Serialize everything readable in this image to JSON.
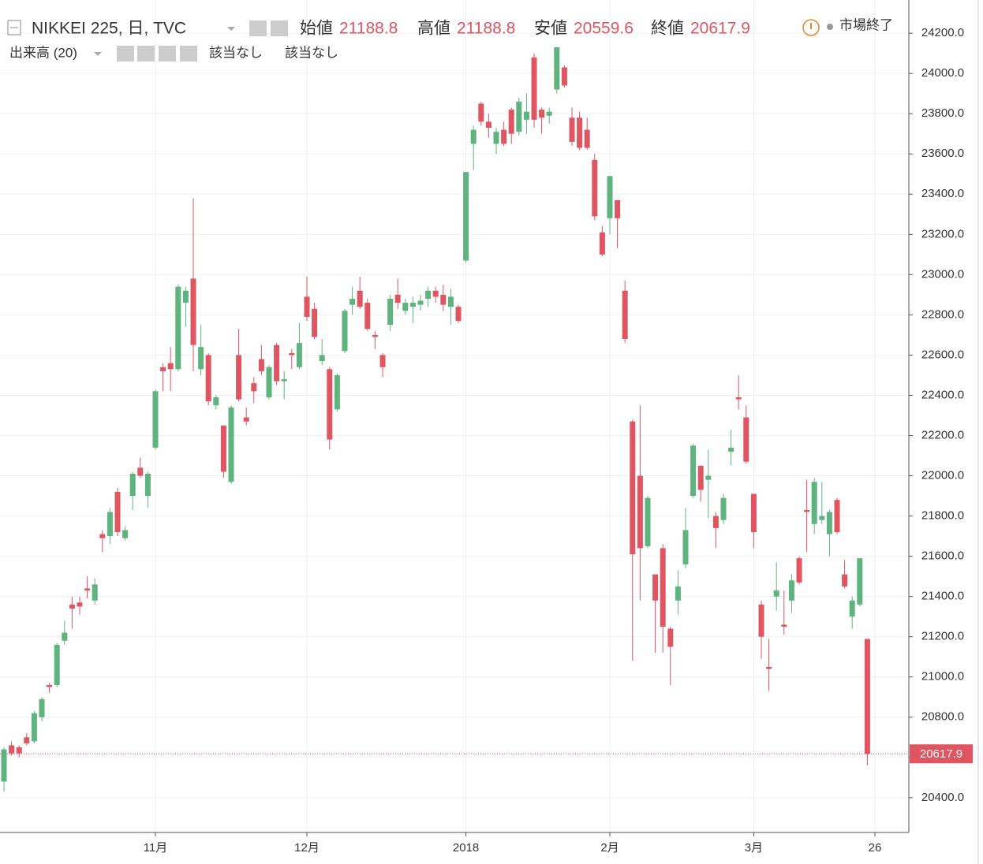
{
  "chart_data": {
    "type": "candlestick",
    "title": "NIKKEI 225, 日, TVC",
    "ohlc_labels": [
      "始値",
      "高値",
      "安値",
      "終値"
    ],
    "status": "市場終了",
    "volume_label": "出来高 (20)",
    "volume_values": [
      "該当なし",
      "該当なし"
    ],
    "up_color": "#5eb37e",
    "down_color": "#df5562",
    "grid": true,
    "ylim": [
      20227,
      24365
    ],
    "yticks": [
      {
        "value": 20400,
        "label": "20400.0"
      },
      {
        "value": 20600,
        "label": "20600.0"
      },
      {
        "value": 20800,
        "label": "20800.0"
      },
      {
        "value": 21000,
        "label": "21000.0"
      },
      {
        "value": 21200,
        "label": "21200.0"
      },
      {
        "value": 21400,
        "label": "21400.0"
      },
      {
        "value": 21600,
        "label": "21600.0"
      },
      {
        "value": 21800,
        "label": "21800.0"
      },
      {
        "value": 22000,
        "label": "22000.0"
      },
      {
        "value": 22200,
        "label": "22200.0"
      },
      {
        "value": 22400,
        "label": "22400.0"
      },
      {
        "value": 22600,
        "label": "22600.0"
      },
      {
        "value": 22800,
        "label": "22800.0"
      },
      {
        "value": 23000,
        "label": "23000.0"
      },
      {
        "value": 23200,
        "label": "23200.0"
      },
      {
        "value": 23400,
        "label": "23400.0"
      },
      {
        "value": 23600,
        "label": "23600.0"
      },
      {
        "value": 23800,
        "label": "23800.0"
      },
      {
        "value": 24000,
        "label": "24000.0"
      },
      {
        "value": 24200,
        "label": "24200.0"
      }
    ],
    "categories": [
      null,
      null,
      null,
      null,
      null,
      null,
      null,
      null,
      null,
      null,
      null,
      null,
      null,
      null,
      null,
      null,
      null,
      null,
      null,
      null,
      "11月",
      null,
      null,
      null,
      null,
      null,
      null,
      null,
      null,
      null,
      null,
      null,
      null,
      null,
      null,
      null,
      null,
      null,
      null,
      null,
      "12月",
      null,
      null,
      null,
      null,
      null,
      null,
      null,
      null,
      null,
      null,
      null,
      null,
      null,
      null,
      null,
      null,
      null,
      null,
      null,
      null,
      "2018",
      null,
      null,
      null,
      null,
      null,
      null,
      null,
      null,
      null,
      null,
      null,
      null,
      null,
      null,
      null,
      null,
      null,
      null,
      "2月",
      null,
      null,
      null,
      null,
      null,
      null,
      null,
      null,
      null,
      null,
      null,
      null,
      null,
      null,
      null,
      null,
      null,
      null,
      "3月",
      null,
      null,
      null,
      null,
      null,
      null,
      null,
      null,
      null,
      null,
      null,
      null,
      null,
      null,
      null,
      "26"
    ],
    "open": [
      20480,
      20660,
      20650,
      20700,
      20680,
      20800,
      20960,
      20960,
      21180,
      21360,
      21370,
      21440,
      21380,
      21710,
      21700,
      21920,
      21690,
      21900,
      22040,
      21900,
      22140,
      22540,
      22560,
      22530,
      22860,
      22980,
      22530,
      22600,
      22350,
      22250,
      21970,
      22600,
      22290,
      22460,
      22580,
      22390,
      22650,
      22470,
      22610,
      22540,
      22890,
      22830,
      22570,
      22530,
      22330,
      22620,
      22850,
      22920,
      22860,
      22700,
      22600,
      22750,
      22900,
      22820,
      22840,
      22850,
      22880,
      22920,
      22900,
      22840,
      22840,
      23070,
      23650,
      23850,
      23760,
      23650,
      23720,
      23820,
      23710,
      23770,
      24080,
      23820,
      23790,
      23920,
      24030,
      23780,
      23780,
      23720,
      23570,
      23210,
      23280,
      23370,
      22920,
      22270,
      22000,
      21650,
      21510,
      21640,
      21240,
      21380,
      21560,
      21900,
      22050,
      21980,
      21800,
      21780,
      22120,
      22390,
      22290,
      21910,
      21360,
      21050,
      21400,
      21260,
      21380,
      21590,
      21830,
      21760,
      21780,
      21710,
      21880,
      21510,
      21300,
      21360,
      21188.8,
      null
    ],
    "high": [
      20650,
      20680,
      20660,
      20720,
      20830,
      20900,
      20970,
      21170,
      21280,
      21400,
      21400,
      21500,
      21490,
      21730,
      21840,
      21940,
      21750,
      22020,
      22090,
      22020,
      22430,
      22560,
      22640,
      22950,
      22940,
      23380,
      22750,
      22610,
      22400,
      22250,
      22350,
      22730,
      22340,
      22490,
      22650,
      22550,
      22660,
      22520,
      22630,
      22760,
      22990,
      22860,
      22680,
      22540,
      22510,
      22830,
      22940,
      22990,
      22880,
      22720,
      22610,
      22900,
      22980,
      22880,
      22890,
      22900,
      22940,
      22940,
      22950,
      22930,
      22850,
      23510,
      23740,
      23860,
      23800,
      23730,
      23760,
      23830,
      23880,
      23900,
      24100,
      23830,
      23830,
      24130,
      24040,
      23830,
      23810,
      23780,
      23600,
      23240,
      23490,
      23370,
      22970,
      22280,
      22350,
      21900,
      21510,
      21660,
      21250,
      21530,
      21840,
      22160,
      22050,
      22130,
      21820,
      21910,
      22230,
      22500,
      22350,
      21910,
      21380,
      21190,
      21570,
      21430,
      21510,
      21600,
      21980,
      21990,
      21970,
      21830,
      21890,
      21580,
      21400,
      21590,
      21188.8,
      null
    ],
    "low": [
      20430,
      20610,
      20600,
      20660,
      20670,
      20780,
      20920,
      20950,
      21160,
      21240,
      21310,
      21390,
      21360,
      21620,
      21660,
      21700,
      21680,
      21830,
      21990,
      21840,
      22130,
      22420,
      22420,
      22520,
      22740,
      22520,
      22500,
      22350,
      22330,
      21990,
      21960,
      22370,
      22250,
      22360,
      22500,
      22380,
      22450,
      22380,
      22530,
      22530,
      22770,
      22680,
      22550,
      22130,
      22320,
      22610,
      22800,
      22830,
      22720,
      22630,
      22490,
      22720,
      22830,
      22800,
      22760,
      22820,
      22840,
      22860,
      22820,
      22750,
      22760,
      23060,
      23520,
      23740,
      23680,
      23600,
      23640,
      23650,
      23690,
      23700,
      23730,
      23700,
      23750,
      23900,
      23930,
      23640,
      23620,
      23620,
      23270,
      23090,
      23200,
      23130,
      22660,
      21080,
      21380,
      21640,
      21120,
      21120,
      20960,
      21310,
      21540,
      21890,
      21870,
      21790,
      21640,
      21760,
      22050,
      22330,
      22060,
      21640,
      21090,
      20930,
      21330,
      21210,
      21320,
      21460,
      21620,
      21710,
      21760,
      21600,
      21710,
      21440,
      21240,
      21350,
      20559.6,
      null
    ],
    "close": [
      20640,
      20620,
      20620,
      20670,
      20820,
      20890,
      20950,
      21160,
      21220,
      21340,
      21350,
      21430,
      21460,
      21690,
      21820,
      21720,
      21730,
      22010,
      22000,
      22010,
      22420,
      22520,
      22530,
      22940,
      22920,
      22650,
      22640,
      22370,
      22390,
      22020,
      22340,
      22380,
      22270,
      22420,
      22520,
      22540,
      22470,
      22480,
      22600,
      22660,
      22790,
      22690,
      22600,
      22180,
      22500,
      22820,
      22880,
      22840,
      22730,
      22690,
      22540,
      22880,
      22860,
      22860,
      22860,
      22870,
      22920,
      22890,
      22850,
      22890,
      22770,
      23510,
      23720,
      23760,
      23730,
      23710,
      23650,
      23700,
      23860,
      23810,
      23770,
      23780,
      23810,
      24130,
      23940,
      23660,
      23630,
      23630,
      23290,
      23100,
      23490,
      23280,
      22680,
      21610,
      21640,
      21890,
      21380,
      21250,
      21150,
      21450,
      21730,
      22150,
      21930,
      22000,
      21740,
      21890,
      22140,
      22380,
      22070,
      21720,
      21200,
      21040,
      21430,
      21250,
      21480,
      21470,
      21820,
      21970,
      21800,
      21820,
      21720,
      21450,
      21380,
      21590,
      20617.9,
      null
    ]
  }
}
